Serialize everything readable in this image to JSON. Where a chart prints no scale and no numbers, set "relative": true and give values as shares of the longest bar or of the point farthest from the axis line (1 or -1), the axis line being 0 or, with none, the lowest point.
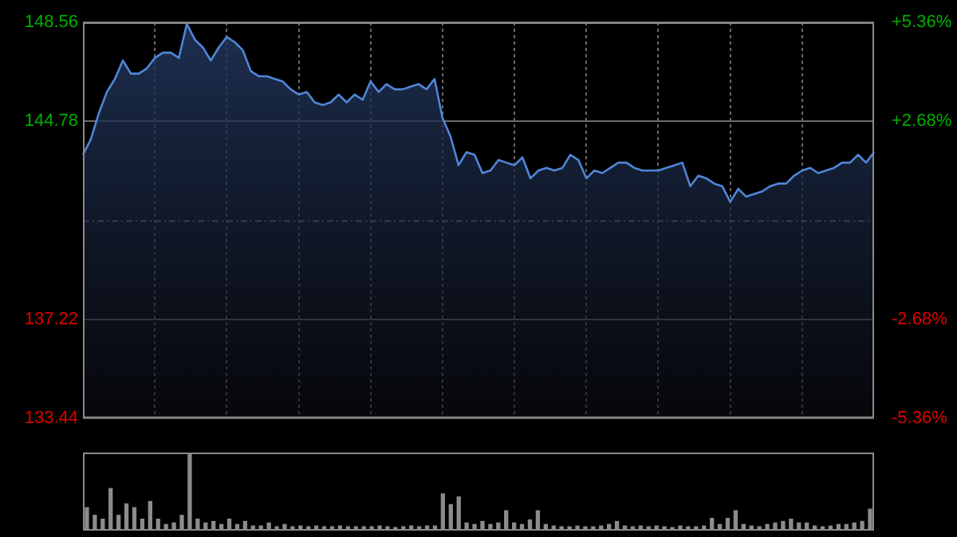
{
  "chart_data": [
    {
      "type": "area",
      "categories": [
        null,
        null,
        null,
        null,
        null,
        null,
        null,
        null,
        null,
        null,
        null,
        null,
        null,
        null,
        null,
        null,
        null,
        null,
        null,
        null,
        null,
        null,
        null,
        null,
        null,
        null,
        null,
        null,
        null,
        null,
        null,
        null,
        null,
        null,
        null,
        null,
        null,
        null,
        null,
        null,
        null,
        null,
        null,
        null,
        null,
        null,
        null,
        null,
        null,
        null,
        null,
        null,
        null,
        null,
        null,
        null,
        null,
        null,
        null,
        null,
        null,
        null,
        null,
        null,
        null,
        null,
        null,
        null,
        null,
        null,
        null,
        null,
        null,
        null,
        null,
        null,
        null,
        null,
        null,
        null,
        null,
        null,
        null,
        null,
        null,
        null,
        null,
        null,
        null,
        null,
        null,
        null,
        null,
        null,
        null,
        null,
        null,
        null,
        null,
        null
      ],
      "series": [
        {
          "color": "#4f86d8",
          "values": [
            143.5,
            144.1,
            145.1,
            145.9,
            146.4,
            147.1,
            146.6,
            146.6,
            146.8,
            147.2,
            147.4,
            147.4,
            147.2,
            148.5,
            147.9,
            147.6,
            147.1,
            147.6,
            148.0,
            147.8,
            147.5,
            146.7,
            146.5,
            146.5,
            146.4,
            146.3,
            146.0,
            145.8,
            145.9,
            145.5,
            145.4,
            145.5,
            145.8,
            145.5,
            145.8,
            145.6,
            146.3,
            145.9,
            146.2,
            146.0,
            146.0,
            146.1,
            146.2,
            146.0,
            146.4,
            144.9,
            144.2,
            143.1,
            143.6,
            143.5,
            142.8,
            142.9,
            143.3,
            143.2,
            143.1,
            143.4,
            142.6,
            142.9,
            143.0,
            142.9,
            143.0,
            143.5,
            143.3,
            142.6,
            142.9,
            142.8,
            143.0,
            143.2,
            143.2,
            143.0,
            142.9,
            142.9,
            142.9,
            143.0,
            143.1,
            143.2,
            142.3,
            142.7,
            142.6,
            142.4,
            142.3,
            141.7,
            142.2,
            141.9,
            142.0,
            142.1,
            142.3,
            142.4,
            142.4,
            142.7,
            142.9,
            143.0,
            142.8,
            142.9,
            143.0,
            143.2,
            143.2,
            143.5,
            143.2,
            143.6
          ]
        }
      ],
      "ylim": [
        133.44,
        148.56
      ],
      "yticks": [
        133.44,
        137.22,
        144.78,
        148.56
      ],
      "y2lim": [
        -5.36,
        5.36
      ],
      "y2ticks": [
        {
          "value": -5.36,
          "label": "-5.36%"
        },
        {
          "value": -2.68,
          "label": "-2.68%"
        },
        {
          "value": 2.68,
          "label": "+2.68%"
        },
        {
          "value": 5.36,
          "label": "+5.36%"
        }
      ],
      "ref_lines": [
        {
          "axis": "y",
          "value": 141.0
        }
      ],
      "grid": true,
      "tick_labels": "y"
    },
    {
      "type": "bar",
      "relative": true,
      "categories": [
        null,
        null,
        null,
        null,
        null,
        null,
        null,
        null,
        null,
        null,
        null,
        null,
        null,
        null,
        null,
        null,
        null,
        null,
        null,
        null,
        null,
        null,
        null,
        null,
        null,
        null,
        null,
        null,
        null,
        null,
        null,
        null,
        null,
        null,
        null,
        null,
        null,
        null,
        null,
        null,
        null,
        null,
        null,
        null,
        null,
        null,
        null,
        null,
        null,
        null,
        null,
        null,
        null,
        null,
        null,
        null,
        null,
        null,
        null,
        null,
        null,
        null,
        null,
        null,
        null,
        null,
        null,
        null,
        null,
        null,
        null,
        null,
        null,
        null,
        null,
        null,
        null,
        null,
        null,
        null,
        null,
        null,
        null,
        null,
        null,
        null,
        null,
        null,
        null,
        null,
        null,
        null,
        null,
        null,
        null,
        null,
        null,
        null,
        null,
        null
      ],
      "color": "#8c8c8c",
      "values": [
        0.3,
        0.2,
        0.15,
        0.55,
        0.2,
        0.35,
        0.3,
        0.15,
        0.38,
        0.15,
        0.08,
        0.1,
        0.2,
        1,
        0.15,
        0.1,
        0.12,
        0.08,
        0.15,
        0.08,
        0.12,
        0.06,
        0.06,
        0.1,
        0.05,
        0.08,
        0.05,
        0.06,
        0.05,
        0.06,
        0.05,
        0.05,
        0.06,
        0.05,
        0.05,
        0.05,
        0.05,
        0.06,
        0.05,
        0.04,
        0.05,
        0.06,
        0.05,
        0.06,
        0.06,
        0.48,
        0.34,
        0.44,
        0.1,
        0.08,
        0.12,
        0.08,
        0.1,
        0.26,
        0.1,
        0.08,
        0.14,
        0.26,
        0.08,
        0.06,
        0.05,
        0.05,
        0.06,
        0.05,
        0.05,
        0.06,
        0.08,
        0.12,
        0.06,
        0.05,
        0.06,
        0.05,
        0.06,
        0.05,
        0.04,
        0.06,
        0.05,
        0.05,
        0.06,
        0.16,
        0.08,
        0.16,
        0.26,
        0.08,
        0.06,
        0.05,
        0.08,
        0.1,
        0.12,
        0.15,
        0.1,
        0.1,
        0.06,
        0.05,
        0.06,
        0.08,
        0.08,
        0.1,
        0.12,
        0.28
      ],
      "tick_labels": false
    }
  ]
}
